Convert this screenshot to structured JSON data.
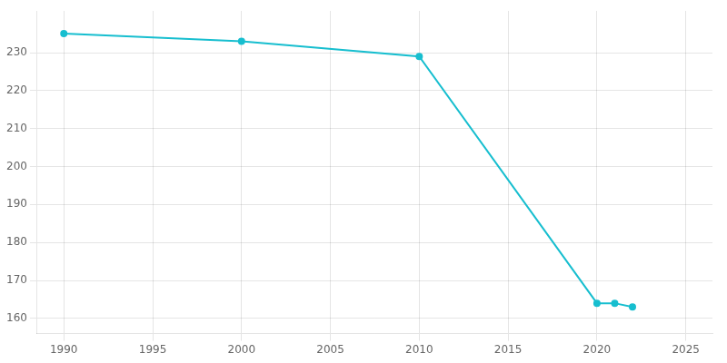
{
  "chart_data": {
    "type": "line",
    "x": [
      1990,
      2000,
      2010,
      2020,
      2021,
      2022
    ],
    "values": [
      235,
      233,
      229,
      164,
      164,
      163
    ],
    "color": "#17becf",
    "marker": "circle",
    "xlim": [
      1988.5,
      2026.5
    ],
    "ylim": [
      156,
      241
    ],
    "xticks": [
      1990,
      1995,
      2000,
      2005,
      2010,
      2015,
      2020,
      2025
    ],
    "yticks": [
      160,
      170,
      180,
      190,
      200,
      210,
      220,
      230
    ],
    "grid": true
  }
}
